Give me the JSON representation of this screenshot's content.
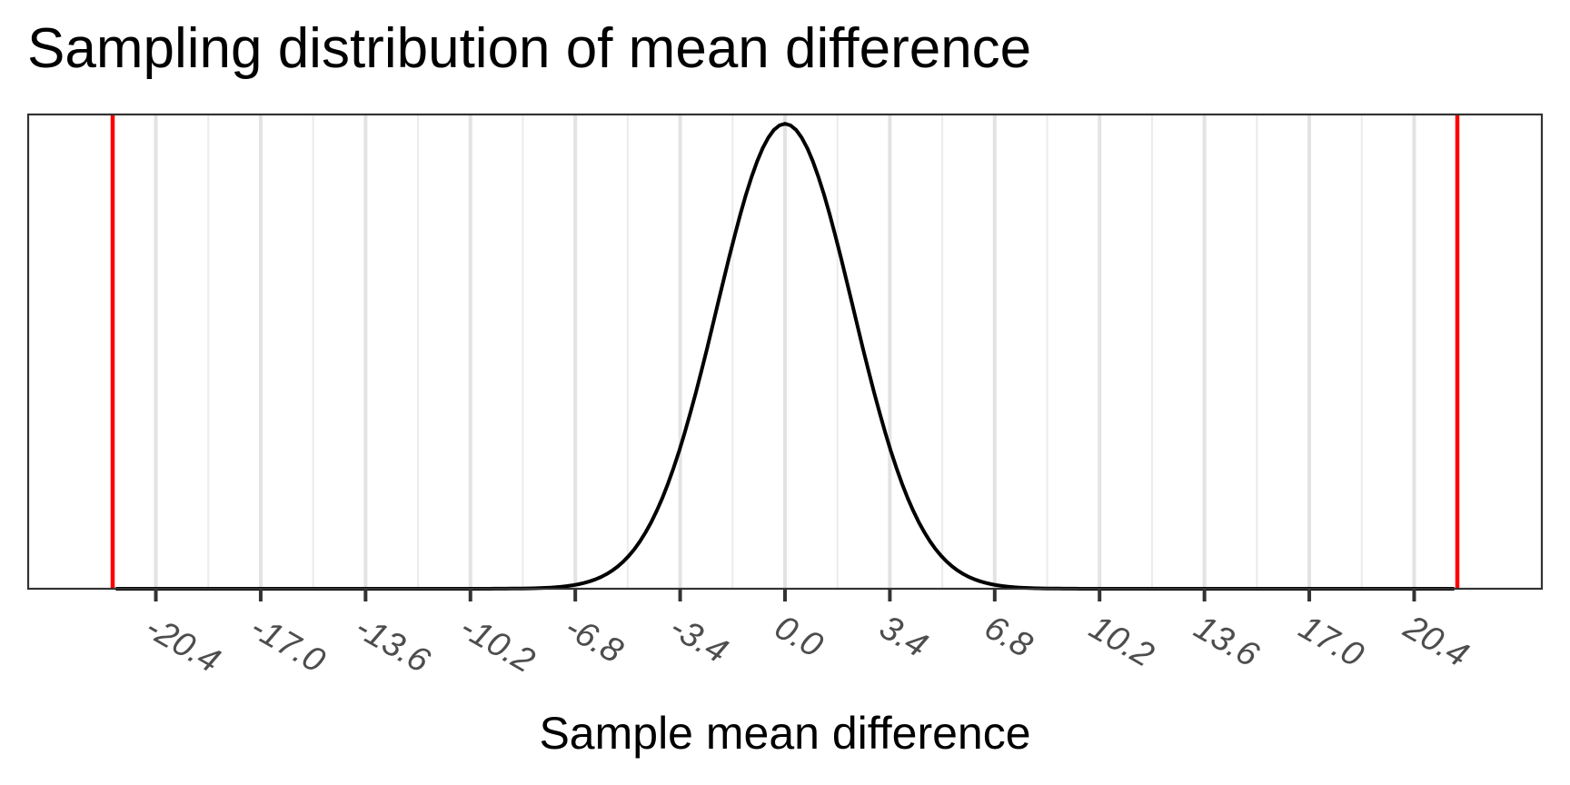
{
  "chart_data": {
    "type": "line",
    "title": "Sampling distribution of mean difference",
    "xlabel": "Sample mean difference",
    "ylabel": "",
    "xlim": [
      -24.54,
      24.54
    ],
    "ylim": [
      0,
      1.02
    ],
    "x_ticks": [
      -20.4,
      -17.0,
      -13.6,
      -10.2,
      -6.8,
      -3.4,
      0.0,
      3.4,
      6.8,
      10.2,
      13.6,
      17.0,
      20.4
    ],
    "x_tick_labels": [
      "-20.4",
      "-17.0",
      "-13.6",
      "-10.2",
      "-6.8",
      "-3.4",
      "0.0",
      "3.4",
      "6.8",
      "10.2",
      "13.6",
      "17.0",
      "20.4"
    ],
    "x_minor_gridlines": [
      -18.7,
      -15.3,
      -11.9,
      -8.5,
      -5.1,
      -1.7,
      1.7,
      5.1,
      8.5,
      11.9,
      15.3,
      18.7
    ],
    "grid": true,
    "y_ticks_shown": false,
    "series": [
      {
        "color": "#000000",
        "density": "normal",
        "mean": 0.0,
        "sd": 2.2,
        "x_range": [
          -21.7,
          21.7
        ],
        "peak_value": 1.0
      }
    ],
    "reference_lines": [
      {
        "orientation": "vertical",
        "x": -21.8,
        "color": "#ff0000"
      },
      {
        "orientation": "vertical",
        "x": 21.8,
        "color": "#ff0000"
      }
    ]
  }
}
